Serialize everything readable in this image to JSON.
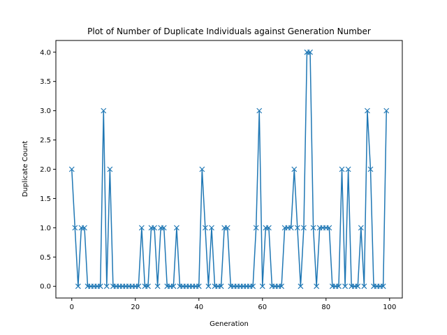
{
  "chart_data": {
    "type": "line",
    "title": "Plot of Number of Duplicate Individuals against Generation Number",
    "xlabel": "Generation",
    "ylabel": "Duplicate Count",
    "xlim": [
      -5,
      104
    ],
    "ylim": [
      -0.2,
      4.2
    ],
    "x_ticks": [
      0,
      20,
      40,
      60,
      80,
      100
    ],
    "y_ticks": [
      0.0,
      0.5,
      1.0,
      1.5,
      2.0,
      2.5,
      3.0,
      3.5,
      4.0
    ],
    "x_tick_labels": [
      "0",
      "20",
      "40",
      "60",
      "80",
      "100"
    ],
    "y_tick_labels": [
      "0.0",
      "0.5",
      "1.0",
      "1.5",
      "2.0",
      "2.5",
      "3.0",
      "3.5",
      "4.0"
    ],
    "grid": false,
    "marker": "x",
    "line_color": "#1f77b4",
    "series": [
      {
        "x": [
          0,
          1,
          2,
          3,
          4,
          5,
          6,
          7,
          8,
          9,
          10,
          11,
          12,
          13,
          14,
          15,
          16,
          17,
          18,
          19,
          20,
          21,
          22,
          23,
          24,
          25,
          26,
          27,
          28,
          29,
          30,
          31,
          32,
          33,
          34,
          35,
          36,
          37,
          38,
          39,
          40,
          41,
          42,
          43,
          44,
          45,
          46,
          47,
          48,
          49,
          50,
          51,
          52,
          53,
          54,
          55,
          56,
          57,
          58,
          59,
          60,
          61,
          62,
          63,
          64,
          65,
          66,
          67,
          68,
          69,
          70,
          71,
          72,
          73,
          74,
          75,
          76,
          77,
          78,
          79,
          80,
          81,
          82,
          83,
          84,
          85,
          86,
          87,
          88,
          89,
          90,
          91,
          92,
          93,
          94,
          95,
          96,
          97,
          98,
          99
        ],
        "values": [
          2,
          1,
          0,
          1,
          1,
          0,
          0,
          0,
          0,
          0,
          3,
          0,
          2,
          0,
          0,
          0,
          0,
          0,
          0,
          0,
          0,
          0,
          1,
          0,
          0,
          1,
          1,
          0,
          1,
          1,
          0,
          0,
          0,
          1,
          0,
          0,
          0,
          0,
          0,
          0,
          0,
          2,
          1,
          0,
          1,
          0,
          0,
          0,
          1,
          1,
          0,
          0,
          0,
          0,
          0,
          0,
          0,
          0,
          1,
          3,
          0,
          1,
          1,
          0,
          0,
          0,
          0,
          1,
          1,
          1,
          2,
          1,
          0,
          1,
          4,
          4,
          1,
          0,
          1,
          1,
          1,
          1,
          0,
          0,
          0,
          2,
          0,
          2,
          0,
          0,
          0,
          1,
          0,
          3,
          2,
          0,
          0,
          0,
          0,
          3
        ]
      }
    ]
  }
}
